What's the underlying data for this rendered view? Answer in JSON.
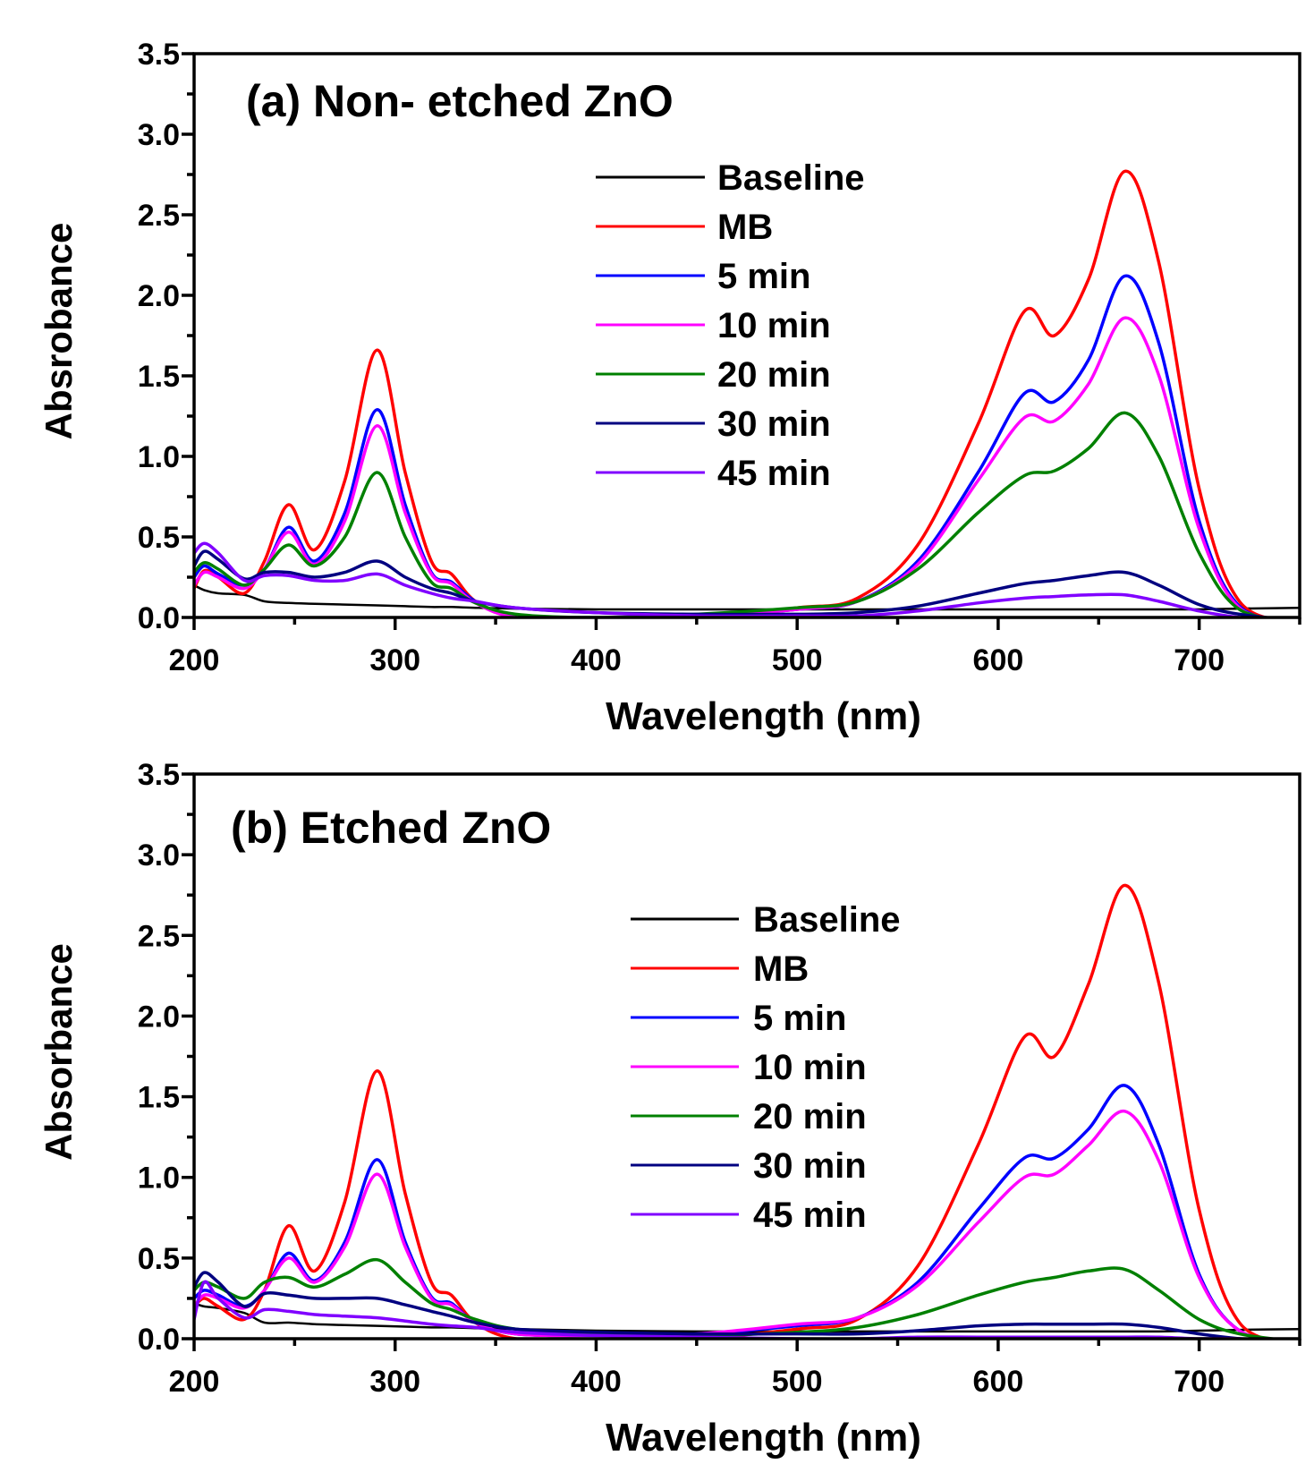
{
  "chart_data": [
    {
      "type": "line",
      "title": "(a) Non- etched ZnO",
      "xlabel": "Wavelength (nm)",
      "ylabel": "Absrobance",
      "xlim": [
        200,
        750
      ],
      "ylim": [
        0,
        3.5
      ],
      "xticks": [
        "200",
        "300",
        "400",
        "500",
        "600",
        "700"
      ],
      "yticks": [
        "0.0",
        "0.5",
        "1.0",
        "1.5",
        "2.0",
        "2.5",
        "3.0",
        "3.5"
      ],
      "grid": false,
      "legend_position": "top-right",
      "x": [
        200,
        205,
        212,
        225,
        235,
        247,
        260,
        275,
        291,
        305,
        318,
        328,
        340,
        360,
        400,
        450,
        500,
        530,
        560,
        590,
        613,
        628,
        645,
        663,
        680,
        700,
        720,
        750
      ],
      "series": [
        {
          "name": "Baseline",
          "color": "#000000",
          "values": [
            0.2,
            0.17,
            0.15,
            0.14,
            0.1,
            0.09,
            0.085,
            0.08,
            0.075,
            0.07,
            0.065,
            0.065,
            0.06,
            0.055,
            0.05,
            0.05,
            0.05,
            0.05,
            0.05,
            0.05,
            0.05,
            0.05,
            0.05,
            0.05,
            0.05,
            0.05,
            0.055,
            0.06
          ]
        },
        {
          "name": "MB",
          "color": "#ff0000",
          "values": [
            0.18,
            0.29,
            0.25,
            0.15,
            0.35,
            0.7,
            0.42,
            0.85,
            1.66,
            0.9,
            0.35,
            0.27,
            0.1,
            0.0,
            -0.01,
            0.0,
            0.06,
            0.12,
            0.45,
            1.2,
            1.9,
            1.75,
            2.1,
            2.77,
            2.2,
            0.8,
            0.1,
            -0.03
          ]
        },
        {
          "name": "5 min",
          "color": "#0000ff",
          "values": [
            0.25,
            0.32,
            0.27,
            0.2,
            0.3,
            0.56,
            0.35,
            0.65,
            1.29,
            0.7,
            0.28,
            0.22,
            0.1,
            0.0,
            -0.02,
            0.0,
            0.05,
            0.1,
            0.35,
            0.9,
            1.39,
            1.34,
            1.6,
            2.12,
            1.7,
            0.6,
            0.07,
            -0.03
          ]
        },
        {
          "name": "10 min",
          "color": "#ff00ff",
          "values": [
            0.2,
            0.28,
            0.25,
            0.18,
            0.3,
            0.53,
            0.33,
            0.6,
            1.19,
            0.65,
            0.27,
            0.21,
            0.09,
            0.0,
            -0.02,
            0.0,
            0.05,
            0.1,
            0.33,
            0.85,
            1.24,
            1.22,
            1.45,
            1.86,
            1.5,
            0.55,
            0.06,
            -0.02
          ]
        },
        {
          "name": "20 min",
          "color": "#008000",
          "values": [
            0.28,
            0.34,
            0.3,
            0.2,
            0.3,
            0.45,
            0.32,
            0.5,
            0.9,
            0.5,
            0.22,
            0.18,
            0.09,
            0.02,
            0.0,
            0.02,
            0.06,
            0.1,
            0.3,
            0.65,
            0.88,
            0.91,
            1.05,
            1.27,
            1.0,
            0.4,
            0.05,
            -0.02
          ]
        },
        {
          "name": "30 min",
          "color": "#000080",
          "values": [
            0.32,
            0.41,
            0.36,
            0.24,
            0.28,
            0.28,
            0.25,
            0.28,
            0.35,
            0.25,
            0.18,
            0.15,
            0.1,
            0.06,
            0.03,
            0.02,
            0.02,
            0.03,
            0.07,
            0.15,
            0.21,
            0.23,
            0.26,
            0.28,
            0.2,
            0.08,
            0.02,
            -0.02
          ]
        },
        {
          "name": "45 min",
          "color": "#8000ff",
          "values": [
            0.4,
            0.46,
            0.4,
            0.23,
            0.26,
            0.26,
            0.23,
            0.23,
            0.27,
            0.2,
            0.15,
            0.12,
            0.1,
            0.06,
            0.03,
            0.01,
            0.01,
            0.01,
            0.04,
            0.09,
            0.12,
            0.13,
            0.14,
            0.14,
            0.1,
            0.04,
            0.0,
            -0.03
          ]
        }
      ]
    },
    {
      "type": "line",
      "title": "(b) Etched ZnO",
      "xlabel": "Wavelength (nm)",
      "ylabel": "Absorbance",
      "xlim": [
        200,
        750
      ],
      "ylim": [
        0,
        3.5
      ],
      "xticks": [
        "200",
        "300",
        "400",
        "500",
        "600",
        "700"
      ],
      "yticks": [
        "0.0",
        "0.5",
        "1.0",
        "1.5",
        "2.0",
        "2.5",
        "3.0",
        "3.5"
      ],
      "grid": false,
      "legend_position": "top-right",
      "x": [
        200,
        205,
        212,
        225,
        235,
        247,
        260,
        275,
        291,
        305,
        318,
        328,
        340,
        360,
        400,
        450,
        500,
        530,
        560,
        590,
        613,
        628,
        645,
        663,
        680,
        700,
        720,
        750
      ],
      "series": [
        {
          "name": "Baseline",
          "color": "#000000",
          "values": [
            0.22,
            0.2,
            0.19,
            0.16,
            0.1,
            0.1,
            0.09,
            0.085,
            0.08,
            0.075,
            0.07,
            0.07,
            0.065,
            0.06,
            0.05,
            0.045,
            0.045,
            0.045,
            0.045,
            0.045,
            0.045,
            0.045,
            0.045,
            0.045,
            0.045,
            0.05,
            0.055,
            0.06
          ]
        },
        {
          "name": "MB",
          "color": "#ff0000",
          "values": [
            0.2,
            0.25,
            0.2,
            0.12,
            0.3,
            0.7,
            0.42,
            0.85,
            1.66,
            0.9,
            0.35,
            0.27,
            0.1,
            0.0,
            -0.01,
            0.0,
            0.06,
            0.12,
            0.45,
            1.2,
            1.87,
            1.75,
            2.2,
            2.81,
            2.2,
            0.8,
            0.1,
            -0.03
          ]
        },
        {
          "name": "5 min",
          "color": "#0000ff",
          "values": [
            0.25,
            0.3,
            0.27,
            0.2,
            0.3,
            0.53,
            0.36,
            0.6,
            1.11,
            0.6,
            0.26,
            0.22,
            0.1,
            0.03,
            0.02,
            0.03,
            0.08,
            0.13,
            0.35,
            0.8,
            1.12,
            1.12,
            1.3,
            1.57,
            1.2,
            0.4,
            0.05,
            -0.03
          ]
        },
        {
          "name": "10 min",
          "color": "#ff00ff",
          "values": [
            0.2,
            0.27,
            0.25,
            0.19,
            0.3,
            0.5,
            0.35,
            0.57,
            1.02,
            0.57,
            0.25,
            0.21,
            0.1,
            0.03,
            0.02,
            0.03,
            0.09,
            0.13,
            0.33,
            0.72,
            1.0,
            1.02,
            1.2,
            1.41,
            1.1,
            0.38,
            0.05,
            -0.03
          ]
        },
        {
          "name": "20 min",
          "color": "#008000",
          "values": [
            0.3,
            0.35,
            0.32,
            0.25,
            0.35,
            0.38,
            0.32,
            0.4,
            0.49,
            0.35,
            0.22,
            0.18,
            0.12,
            0.06,
            0.03,
            0.02,
            0.04,
            0.07,
            0.15,
            0.27,
            0.35,
            0.38,
            0.42,
            0.43,
            0.3,
            0.12,
            0.03,
            -0.02
          ]
        },
        {
          "name": "30 min",
          "color": "#000080",
          "values": [
            0.32,
            0.41,
            0.35,
            0.2,
            0.28,
            0.27,
            0.25,
            0.25,
            0.25,
            0.21,
            0.17,
            0.14,
            0.1,
            0.06,
            0.04,
            0.03,
            0.03,
            0.03,
            0.05,
            0.08,
            0.09,
            0.09,
            0.09,
            0.09,
            0.07,
            0.03,
            0.0,
            -0.03
          ]
        },
        {
          "name": "45 min",
          "color": "#8000ff",
          "values": [
            0.12,
            0.35,
            0.25,
            0.13,
            0.18,
            0.17,
            0.15,
            0.14,
            0.13,
            0.11,
            0.09,
            0.08,
            0.07,
            0.04,
            0.02,
            0.01,
            0.0,
            0.0,
            0.01,
            0.01,
            0.01,
            0.01,
            0.01,
            0.01,
            0.01,
            0.0,
            0.0,
            -0.02
          ]
        }
      ]
    }
  ]
}
